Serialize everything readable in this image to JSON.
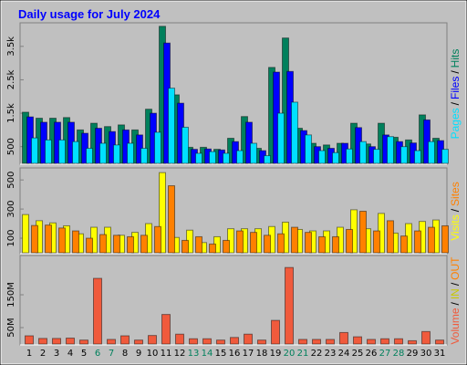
{
  "title": "Daily usage for July 2024",
  "chart_data": [
    {
      "type": "bar",
      "separator": "/",
      "legend_reversed": true,
      "ylim": [
        0,
        4150
      ],
      "yticks": [
        500,
        {
          "value": 1500,
          "label": "1.5k"
        },
        {
          "value": 2500,
          "label": "2.5k"
        },
        {
          "value": 3500,
          "label": "3.5k"
        }
      ],
      "series": [
        {
          "name": "Hits",
          "color": "#00805c",
          "values": [
            1530,
            1350,
            1350,
            1370,
            1000,
            1200,
            1100,
            1150,
            1000,
            1620,
            4100,
            2050,
            480,
            480,
            420,
            750,
            1400,
            450,
            2870,
            3750,
            1050,
            600,
            550,
            600,
            1200,
            580,
            1200,
            780,
            700,
            1450,
            750
          ]
        },
        {
          "name": "Files",
          "color": "#0000ff",
          "values": [
            1390,
            1230,
            1230,
            1230,
            900,
            1050,
            950,
            1000,
            850,
            1500,
            3600,
            1800,
            420,
            430,
            400,
            650,
            1230,
            380,
            2730,
            2750,
            980,
            500,
            450,
            600,
            1070,
            500,
            850,
            650,
            610,
            1300,
            680
          ]
        },
        {
          "name": "Pages",
          "color": "#00e0ff",
          "values": [
            760,
            700,
            700,
            650,
            450,
            600,
            550,
            600,
            450,
            930,
            2250,
            1080,
            300,
            350,
            300,
            380,
            600,
            230,
            1500,
            1830,
            850,
            380,
            320,
            430,
            650,
            420,
            800,
            500,
            380,
            650,
            420
          ]
        }
      ]
    },
    {
      "type": "bar",
      "separator": "/",
      "legend_reversed": false,
      "ylim": [
        0,
        570
      ],
      "yticks": [
        100,
        300,
        500
      ],
      "series": [
        {
          "name": "Visits",
          "color": "#ffff00",
          "values": [
            262,
            220,
            205,
            185,
            130,
            175,
            175,
            120,
            140,
            200,
            550,
            105,
            155,
            70,
            110,
            165,
            165,
            165,
            180,
            210,
            160,
            150,
            150,
            175,
            295,
            165,
            270,
            135,
            200,
            215,
            225
          ]
        },
        {
          "name": "Sites",
          "color": "#ff8000",
          "values": [
            187,
            190,
            170,
            150,
            100,
            125,
            120,
            110,
            120,
            180,
            460,
            85,
            110,
            60,
            85,
            150,
            140,
            120,
            130,
            175,
            140,
            110,
            110,
            160,
            285,
            150,
            220,
            115,
            150,
            175,
            185
          ]
        }
      ]
    },
    {
      "type": "bar",
      "separator": "/",
      "legend_reversed": false,
      "ylim": [
        0,
        264
      ],
      "yticks": [
        {
          "value": 50,
          "label": "50M"
        },
        {
          "value": 150,
          "label": "150M"
        }
      ],
      "legend_extra": [
        {
          "name": "IN",
          "color": "#c8c800"
        },
        {
          "name": "OUT",
          "color": "#ff8000"
        }
      ],
      "series": [
        {
          "name": "Volume",
          "color": "#f05a3c",
          "values": [
            25,
            17,
            17,
            18,
            12,
            200,
            14,
            25,
            12,
            26,
            90,
            30,
            16,
            16,
            12,
            20,
            30,
            12,
            72,
            233,
            14,
            14,
            14,
            35,
            22,
            14,
            16,
            16,
            10,
            38,
            12
          ]
        }
      ]
    }
  ],
  "categories": [
    "1",
    "2",
    "3",
    "4",
    "5",
    "6",
    "7",
    "8",
    "9",
    "10",
    "11",
    "12",
    "13",
    "14",
    "15",
    "16",
    "17",
    "18",
    "19",
    "20",
    "21",
    "22",
    "23",
    "24",
    "25",
    "26",
    "27",
    "28",
    "29",
    "30",
    "31"
  ],
  "category_colors": [
    "#000",
    "#000",
    "#000",
    "#000",
    "#000",
    "#00805c",
    "#00805c",
    "#000",
    "#000",
    "#000",
    "#000",
    "#000",
    "#00805c",
    "#00805c",
    "#000",
    "#000",
    "#000",
    "#000",
    "#000",
    "#00805c",
    "#00805c",
    "#000",
    "#000",
    "#000",
    "#000",
    "#000",
    "#00805c",
    "#00805c",
    "#000",
    "#000",
    "#000"
  ]
}
